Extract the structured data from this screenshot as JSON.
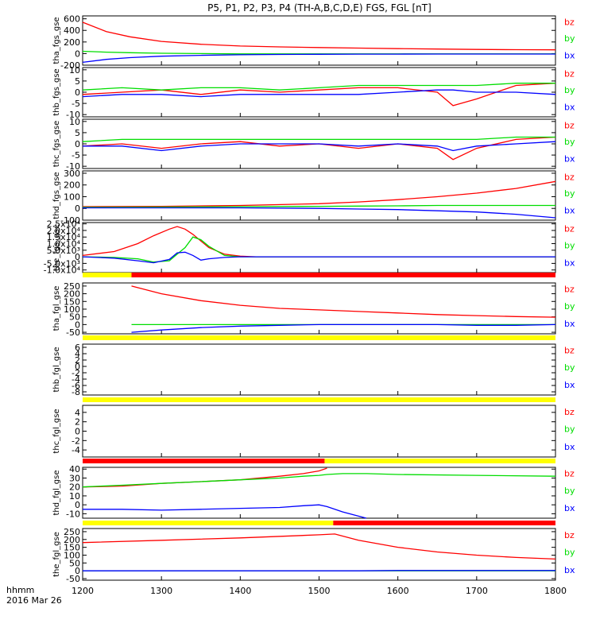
{
  "title": "P5, P1, P2, P3, P4 (TH-A,B,C,D,E) FGS, FGL [nT]",
  "time_label": "hhmm",
  "date_label": "2016 Mar 26",
  "colors": {
    "bx": "#0000ff",
    "by": "#00dd00",
    "bz": "#ff0000",
    "flag_yellow": "#ffff00",
    "flag_red": "#ff0000"
  },
  "legend_labels": [
    "bz",
    "by",
    "bx"
  ],
  "chart_data": [
    {
      "type": "line",
      "name": "tha_fgs_gse",
      "ylabel": "tha_fgs_gse",
      "x": [
        1200,
        1230,
        1260,
        1300,
        1350,
        1400,
        1450,
        1500,
        1550,
        1600,
        1650,
        1700,
        1750,
        1800
      ],
      "ylim": [
        -200,
        650
      ],
      "yticks": [
        -200,
        0,
        200,
        400,
        600
      ],
      "series": [
        {
          "name": "bz",
          "values": [
            540,
            380,
            290,
            210,
            160,
            130,
            115,
            105,
            95,
            85,
            78,
            72,
            68,
            65
          ]
        },
        {
          "name": "by",
          "values": [
            40,
            25,
            15,
            5,
            0,
            -5,
            -5,
            -5,
            -5,
            -5,
            -5,
            -5,
            -5,
            -5
          ]
        },
        {
          "name": "bx",
          "values": [
            -150,
            -100,
            -70,
            -45,
            -30,
            -20,
            -15,
            -12,
            -10,
            -10,
            -8,
            -8,
            -8,
            -8
          ]
        }
      ]
    },
    {
      "type": "line",
      "name": "thb_fgs_gse",
      "ylabel": "thb_fgs_gse",
      "x": [
        1200,
        1250,
        1300,
        1350,
        1400,
        1450,
        1500,
        1550,
        1600,
        1650,
        1670,
        1700,
        1750,
        1800
      ],
      "ylim": [
        -11,
        11
      ],
      "yticks": [
        -10,
        -5,
        0,
        5,
        10
      ],
      "series": [
        {
          "name": "bz",
          "values": [
            -1,
            0,
            1,
            -1,
            1,
            0,
            1,
            2,
            2,
            0,
            -6,
            -3,
            3,
            4
          ]
        },
        {
          "name": "by",
          "values": [
            1,
            2,
            1,
            2,
            2,
            1,
            2,
            3,
            3,
            3,
            3,
            3,
            4,
            4
          ]
        },
        {
          "name": "bx",
          "values": [
            -2,
            -1,
            -1,
            -2,
            -1,
            -1,
            -1,
            -1,
            0,
            1,
            1,
            0,
            0,
            -1
          ]
        }
      ]
    },
    {
      "type": "line",
      "name": "thc_fgs_gse",
      "ylabel": "thc_fgs_gse",
      "x": [
        1200,
        1250,
        1300,
        1350,
        1400,
        1450,
        1500,
        1550,
        1600,
        1650,
        1670,
        1700,
        1750,
        1800
      ],
      "ylim": [
        -11,
        11
      ],
      "yticks": [
        -10,
        -5,
        0,
        5,
        10
      ],
      "series": [
        {
          "name": "bz",
          "values": [
            -1,
            0,
            -2,
            0,
            1,
            -1,
            0,
            -2,
            0,
            -2,
            -7,
            -2,
            2,
            3
          ]
        },
        {
          "name": "by",
          "values": [
            1,
            2,
            2,
            2,
            2,
            2,
            2,
            2,
            2,
            2,
            2,
            2,
            3,
            3
          ]
        },
        {
          "name": "bx",
          "values": [
            -1,
            -1,
            -3,
            -1,
            0,
            0,
            0,
            -1,
            0,
            -1,
            -3,
            -1,
            0,
            1
          ]
        }
      ]
    },
    {
      "type": "line",
      "name": "thd_fgs_gse",
      "ylabel": "thd_fgs_gse",
      "x": [
        1200,
        1300,
        1400,
        1500,
        1550,
        1600,
        1650,
        1700,
        1750,
        1800
      ],
      "ylim": [
        -100,
        320
      ],
      "yticks": [
        -100,
        0,
        100,
        200,
        300
      ],
      "series": [
        {
          "name": "bz",
          "values": [
            15,
            18,
            25,
            40,
            55,
            75,
            100,
            130,
            170,
            230
          ]
        },
        {
          "name": "by",
          "values": [
            10,
            12,
            15,
            18,
            20,
            22,
            25,
            25,
            25,
            25
          ]
        },
        {
          "name": "bx",
          "values": [
            5,
            5,
            5,
            0,
            -5,
            -10,
            -20,
            -30,
            -50,
            -80
          ]
        }
      ]
    },
    {
      "type": "line",
      "name": "the_fgs_gse",
      "ylabel": "the_fgs_gse",
      "x": [
        1200,
        1240,
        1270,
        1290,
        1310,
        1320,
        1330,
        1340,
        1350,
        1360,
        1380,
        1400,
        1420,
        1450,
        1500,
        1600,
        1700,
        1800
      ],
      "ylim": [
        -12000,
        26000
      ],
      "yticks": [
        -10000,
        -5000,
        0,
        5000,
        10000,
        15000,
        20000,
        25000
      ],
      "ytick_labels": [
        "-1.0x10⁴",
        "-5.0x10³",
        "0",
        "5.0x10³",
        "1.0x10⁴",
        "1.5x10⁴",
        "2.0x10⁴",
        "2.5x10⁴"
      ],
      "series": [
        {
          "name": "bz",
          "values": [
            1000,
            4000,
            10000,
            16000,
            21000,
            23000,
            21000,
            17000,
            12000,
            7000,
            2000,
            500,
            0,
            0,
            0,
            0,
            0,
            0
          ]
        },
        {
          "name": "by",
          "values": [
            0,
            -500,
            -1500,
            -4000,
            -3000,
            2000,
            7000,
            15000,
            13000,
            8000,
            1000,
            0,
            0,
            0,
            0,
            0,
            0,
            0
          ]
        },
        {
          "name": "bx",
          "values": [
            0,
            -1000,
            -3000,
            -4500,
            -2000,
            3000,
            3500,
            1000,
            -2500,
            -1500,
            -500,
            0,
            0,
            0,
            0,
            0,
            0,
            0
          ]
        }
      ]
    },
    {
      "type": "line",
      "name": "tha_fgl_gse",
      "ylabel": "tha_fgl_gse",
      "x": [
        1262,
        1300,
        1350,
        1400,
        1450,
        1500,
        1550,
        1600,
        1650,
        1700,
        1750,
        1800
      ],
      "ylim": [
        -60,
        270
      ],
      "yticks": [
        -50,
        0,
        50,
        100,
        150,
        200,
        250
      ],
      "series": [
        {
          "name": "bz",
          "values": [
            250,
            200,
            155,
            125,
            105,
            95,
            85,
            75,
            65,
            58,
            52,
            48
          ]
        },
        {
          "name": "by",
          "values": [
            0,
            0,
            0,
            0,
            0,
            0,
            0,
            0,
            0,
            0,
            0,
            0
          ]
        },
        {
          "name": "bx",
          "values": [
            -50,
            -35,
            -20,
            -10,
            -5,
            0,
            0,
            0,
            0,
            -5,
            -5,
            0
          ]
        }
      ]
    },
    {
      "type": "line",
      "name": "thb_fgl_gse",
      "ylabel": "thb_fgl_gse",
      "x": [
        1200,
        1800
      ],
      "ylim": [
        -9,
        7
      ],
      "yticks": [
        -8,
        -6,
        -4,
        -2,
        0,
        2,
        4,
        6
      ],
      "series": []
    },
    {
      "type": "line",
      "name": "thc_fgl_gse",
      "ylabel": "thc_fgl_gse",
      "x": [
        1200,
        1800
      ],
      "ylim": [
        -5.5,
        5.5
      ],
      "yticks": [
        -4,
        -2,
        0,
        2,
        4
      ],
      "series": []
    },
    {
      "type": "line",
      "name": "thd_fgl_gse",
      "ylabel": "thd_fgl_gse",
      "x": [
        1200,
        1250,
        1300,
        1350,
        1400,
        1450,
        1480,
        1500,
        1510,
        1530,
        1560,
        1600,
        1700,
        1800
      ],
      "ylim": [
        -15,
        42
      ],
      "yticks": [
        -10,
        0,
        10,
        20,
        30,
        40
      ],
      "series": [
        {
          "name": "bz",
          "values": [
            20,
            21,
            24,
            26,
            28,
            32,
            35,
            38,
            41,
            null,
            null,
            null,
            null,
            null
          ]
        },
        {
          "name": "by",
          "values": [
            20,
            22,
            24,
            26,
            28,
            30,
            32,
            33,
            34,
            35,
            35,
            34,
            33,
            32
          ]
        },
        {
          "name": "bx",
          "values": [
            -5,
            -5,
            -6,
            -5,
            -4,
            -3,
            -1,
            0,
            -2,
            -8,
            -15,
            null,
            null,
            null
          ]
        }
      ]
    },
    {
      "type": "line",
      "name": "the_fgl_gse",
      "ylabel": "the_fgl_gse",
      "x": [
        1200,
        1300,
        1400,
        1500,
        1520,
        1550,
        1600,
        1650,
        1700,
        1750,
        1800
      ],
      "ylim": [
        -60,
        270
      ],
      "yticks": [
        -50,
        0,
        50,
        100,
        150,
        200,
        250
      ],
      "series": [
        {
          "name": "bz",
          "values": [
            180,
            195,
            210,
            230,
            235,
            195,
            150,
            120,
            100,
            85,
            75
          ]
        },
        {
          "name": "by",
          "values": [
            0,
            0,
            0,
            0,
            0,
            0,
            0,
            0,
            0,
            0,
            0
          ]
        },
        {
          "name": "bx",
          "values": [
            0,
            0,
            0,
            0,
            0,
            0,
            2,
            2,
            2,
            2,
            2
          ]
        }
      ]
    }
  ],
  "flag_bars": [
    {
      "before_panel": 5,
      "segments": [
        {
          "from": 1200,
          "to": 1262,
          "color": "yellow"
        },
        {
          "from": 1262,
          "to": 1800,
          "color": "red"
        }
      ]
    },
    {
      "before_panel": 6,
      "segments": [
        {
          "from": 1200,
          "to": 1800,
          "color": "yellow"
        }
      ]
    },
    {
      "before_panel": 7,
      "segments": [
        {
          "from": 1200,
          "to": 1800,
          "color": "yellow"
        }
      ]
    },
    {
      "before_panel": 8,
      "segments": [
        {
          "from": 1200,
          "to": 1507,
          "color": "red"
        },
        {
          "from": 1507,
          "to": 1800,
          "color": "yellow"
        }
      ]
    },
    {
      "before_panel": 9,
      "segments": [
        {
          "from": 1200,
          "to": 1518,
          "color": "yellow"
        },
        {
          "from": 1518,
          "to": 1800,
          "color": "red"
        }
      ]
    }
  ],
  "x_axis": {
    "range": [
      1200,
      1800
    ],
    "ticks": [
      1200,
      1300,
      1400,
      1500,
      1600,
      1700,
      1800
    ]
  }
}
